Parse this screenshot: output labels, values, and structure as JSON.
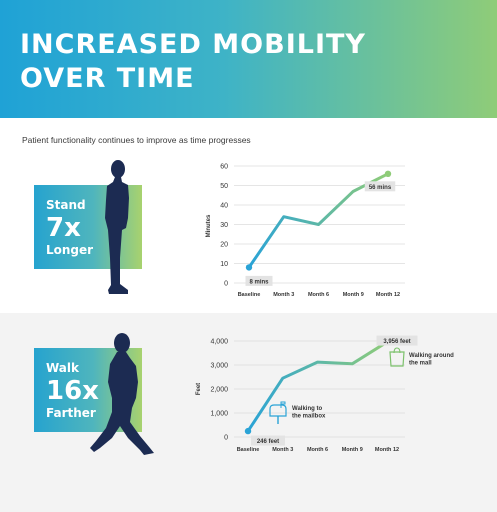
{
  "header": {
    "title_line1": "INCREASED MOBILITY",
    "title_line2": "OVER TIME",
    "subtitle": "Patient functionality continues to improve as time progresses"
  },
  "colors": {
    "line_start": "#2aa3d6",
    "line_end": "#8fcc78",
    "silhouette": "#1c2b52"
  },
  "stand_panel": {
    "word1": "Stand",
    "multiplier": "7x",
    "word2": "Longer"
  },
  "walk_panel": {
    "word1": "Walk",
    "multiplier": "16x",
    "word2": "Farther"
  },
  "icons": [
    "standing-person-icon",
    "walking-person-icon",
    "mailbox-icon",
    "shopping-bag-icon"
  ],
  "chart_data": [
    {
      "type": "line",
      "categories": [
        "Baseline",
        "Month 3",
        "Month 6",
        "Month 9",
        "Month 12"
      ],
      "values": [
        8,
        34,
        30,
        47,
        56
      ],
      "ylabel": "Minutes",
      "ylim": [
        0,
        60
      ],
      "yticks": [
        0,
        10,
        20,
        30,
        40,
        50,
        60
      ],
      "ytick_labels": [
        "0",
        "10",
        "20",
        "30",
        "40",
        "50",
        "60"
      ],
      "grid": true,
      "data_labels": [
        {
          "index": 0,
          "text": "8 mins"
        },
        {
          "index": 4,
          "text": "56 mins"
        }
      ]
    },
    {
      "type": "line",
      "categories": [
        "Baseline",
        "Month 3",
        "Month 6",
        "Month 9",
        "Month 12"
      ],
      "values": [
        246,
        2450,
        3120,
        3050,
        3956
      ],
      "ylabel": "Feet",
      "ylim": [
        0,
        4000
      ],
      "yticks": [
        0,
        1000,
        2000,
        3000,
        4000
      ],
      "ytick_labels": [
        "0",
        "1,000",
        "2,000",
        "3,000",
        "4,000"
      ],
      "grid": true,
      "data_labels": [
        {
          "index": 0,
          "text": "246 feet"
        },
        {
          "index": 4,
          "text": "3,956 feet"
        }
      ],
      "annotations": [
        {
          "index": 0,
          "lines": [
            "Walking to",
            "the mailbox"
          ],
          "icon": "mailbox-icon"
        },
        {
          "index": 4,
          "lines": [
            "Walking around",
            "the mall"
          ],
          "icon": "shopping-bag-icon"
        }
      ]
    }
  ]
}
